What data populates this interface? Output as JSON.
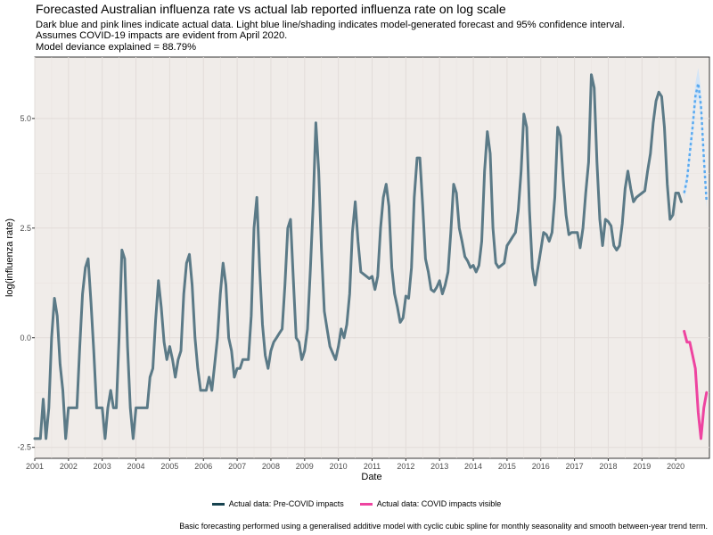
{
  "chart_data": {
    "type": "line",
    "title": "Forecasted Australian influenza rate vs actual lab reported influenza rate on log scale",
    "subtitle": [
      "Dark blue and pink lines indicate actual data. Light blue line/shading indicates model-generated forecast and 95% confidence interval.",
      "Assumes COVID-19 impacts are evident from April 2020.",
      "Model deviance explained = 88.79%"
    ],
    "xlabel": "Date",
    "ylabel": "log(influenza rate)",
    "xlim": [
      2001.0,
      2021.0
    ],
    "ylim": [
      -2.75,
      6.4
    ],
    "x_ticks": [
      "2001",
      "2002",
      "2003",
      "2004",
      "2005",
      "2006",
      "2007",
      "2008",
      "2009",
      "2010",
      "2011",
      "2012",
      "2013",
      "2014",
      "2015",
      "2016",
      "2017",
      "2018",
      "2019",
      "2020"
    ],
    "y_ticks": [
      -2.5,
      0.0,
      2.5,
      5.0
    ],
    "y_tick_labels": [
      "-2.5",
      "0.0",
      "2.5",
      "5.0"
    ],
    "grid": true,
    "legend_position": "bottom",
    "series": [
      {
        "name": "Actual data: Pre-COVID impacts",
        "color": "#5b7a87",
        "x_start": 2001.0,
        "x_step_months": 1,
        "values": [
          -2.3,
          -2.3,
          -2.3,
          -1.4,
          -2.3,
          -1.6,
          0.0,
          0.9,
          0.5,
          -0.6,
          -1.2,
          -2.3,
          -1.6,
          -1.6,
          -1.6,
          -1.6,
          -0.2,
          1.0,
          1.6,
          1.8,
          0.8,
          -0.3,
          -1.6,
          -1.6,
          -1.6,
          -2.3,
          -1.6,
          -1.2,
          -1.6,
          -1.6,
          0.0,
          2.0,
          1.8,
          -0.2,
          -1.6,
          -2.3,
          -1.6,
          -1.6,
          -1.6,
          -1.6,
          -1.6,
          -0.9,
          -0.7,
          0.4,
          1.3,
          0.7,
          -0.1,
          -0.5,
          -0.2,
          -0.5,
          -0.9,
          -0.5,
          -0.3,
          1.0,
          1.7,
          1.9,
          1.2,
          0.0,
          -0.7,
          -1.2,
          -1.2,
          -1.2,
          -0.9,
          -1.2,
          -0.6,
          0.0,
          1.0,
          1.7,
          1.2,
          0.0,
          -0.3,
          -0.9,
          -0.7,
          -0.7,
          -0.5,
          -0.5,
          -0.5,
          0.5,
          2.5,
          3.2,
          1.6,
          0.3,
          -0.4,
          -0.7,
          -0.3,
          -0.1,
          0.0,
          0.1,
          0.2,
          1.2,
          2.5,
          2.7,
          1.3,
          0.0,
          -0.1,
          -0.5,
          -0.3,
          0.2,
          1.5,
          3.0,
          4.9,
          3.8,
          2.0,
          0.6,
          0.2,
          -0.2,
          -0.35,
          -0.5,
          -0.2,
          0.2,
          0.0,
          0.3,
          1.0,
          2.4,
          3.1,
          2.2,
          1.5,
          1.45,
          1.4,
          1.35,
          1.4,
          1.1,
          1.4,
          2.5,
          3.2,
          3.5,
          3.0,
          1.6,
          1.0,
          0.7,
          0.35,
          0.45,
          0.95,
          0.9,
          1.6,
          3.2,
          4.1,
          4.1,
          3.0,
          1.8,
          1.5,
          1.1,
          1.05,
          1.15,
          1.3,
          1.0,
          1.2,
          1.5,
          2.4,
          3.5,
          3.3,
          2.5,
          2.2,
          1.85,
          1.75,
          1.6,
          1.65,
          1.5,
          1.65,
          2.2,
          3.8,
          4.7,
          4.2,
          2.5,
          1.7,
          1.6,
          1.65,
          1.7,
          2.1,
          2.2,
          2.3,
          2.4,
          2.9,
          3.8,
          5.1,
          4.8,
          2.9,
          1.6,
          1.2,
          1.6,
          2.0,
          2.4,
          2.35,
          2.2,
          2.4,
          3.2,
          4.8,
          4.6,
          3.6,
          2.8,
          2.35,
          2.4,
          2.4,
          2.4,
          2.05,
          2.5,
          3.3,
          4.0,
          6.0,
          5.7,
          4.0,
          2.7,
          2.1,
          2.7,
          2.65,
          2.55,
          2.1,
          2.0,
          2.1,
          2.6,
          3.4,
          3.8,
          3.4,
          3.1,
          3.2,
          3.25,
          3.3,
          3.35,
          3.8,
          4.2,
          4.9,
          5.4,
          5.6,
          5.5,
          4.8,
          3.5,
          2.7,
          2.8,
          3.3,
          3.3,
          3.1
        ]
      },
      {
        "name": "Actual data: COVID impacts visible",
        "color": "#ee44a0",
        "x_start": 2020.25,
        "x_step_months": 1,
        "values": [
          0.15,
          -0.1,
          -0.1,
          -0.4,
          -0.7,
          -1.7,
          -2.3,
          -1.6,
          -1.25
        ]
      },
      {
        "name": "Model forecast",
        "color": "#5aaaf0",
        "x_start": 2020.25,
        "x_step_months": 1,
        "values": [
          3.3,
          3.6,
          4.2,
          4.8,
          5.5,
          5.8,
          5.3,
          4.1,
          3.1
        ],
        "ci_lower": [
          3.15,
          3.45,
          4.0,
          4.55,
          5.25,
          5.5,
          5.0,
          3.9,
          2.95
        ],
        "ci_upper": [
          3.45,
          3.8,
          4.45,
          5.05,
          5.8,
          6.15,
          5.65,
          4.35,
          3.25
        ]
      }
    ]
  },
  "legend": {
    "items": [
      {
        "label": "Actual data: Pre-COVID impacts",
        "color": "#17434f"
      },
      {
        "label": "Actual data: COVID impacts visible",
        "color": "#ee44a0"
      }
    ]
  },
  "caption": "Basic forecasting performed using a generalised additive model with cyclic cubic spline for monthly seasonality and smooth between-year trend term."
}
